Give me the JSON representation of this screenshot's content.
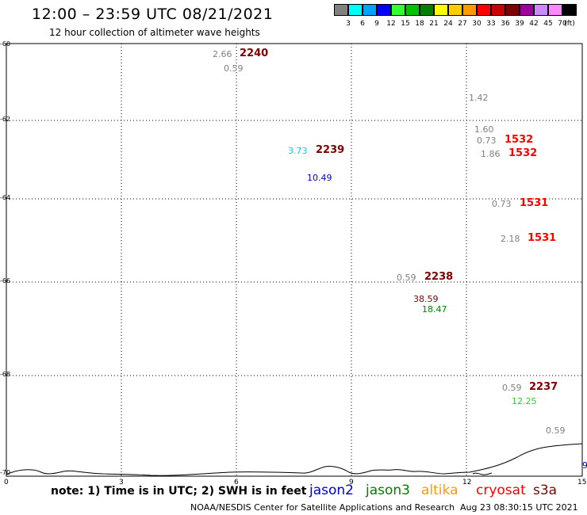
{
  "header": {
    "title": "12:00 – 23:59 UTC 08/21/2021",
    "subtitle": "12 hour collection of altimeter wave heights"
  },
  "legend": {
    "colors": [
      "#808080",
      "#00ffff",
      "#00a0ff",
      "#0000ff",
      "#33ff33",
      "#00c000",
      "#008000",
      "#ffff00",
      "#ffcc00",
      "#ff9900",
      "#ff0000",
      "#cc0000",
      "#800000",
      "#a000a0",
      "#cc88ff",
      "#ff88ff",
      "#000000"
    ],
    "ticks": [
      "3",
      "6",
      "9",
      "12",
      "15",
      "18",
      "21",
      "24",
      "27",
      "30",
      "33",
      "36",
      "39",
      "42",
      "45",
      "70",
      "(ft)"
    ]
  },
  "map": {
    "y_labels": [
      "-60",
      "-62",
      "-64",
      "-66",
      "-68",
      "-70"
    ],
    "x_labels": [
      "0",
      "3",
      "6",
      "9",
      "12",
      "15"
    ],
    "observations": [
      {
        "swh": "2.66",
        "color": "#808080"
      },
      {
        "time": "2240",
        "color": "#800000"
      },
      {
        "swh": "0.59",
        "color": "#808080"
      },
      {
        "swh": "1.42",
        "color": "#808080"
      },
      {
        "swh": "1.60",
        "color": "#808080"
      },
      {
        "swh": "0.73",
        "color": "#808080"
      },
      {
        "time": "1532",
        "color": "#ff0000"
      },
      {
        "swh": "1.86",
        "color": "#808080"
      },
      {
        "time": "1532",
        "color": "#ff0000"
      },
      {
        "swh": "3.73",
        "color": "#00ccff"
      },
      {
        "time": "2239",
        "color": "#800000"
      },
      {
        "swh": "10.49",
        "color": "#0000cc"
      },
      {
        "swh": "0.73",
        "color": "#808080"
      },
      {
        "time": "1531",
        "color": "#ff0000"
      },
      {
        "swh": "2.18",
        "color": "#808080"
      },
      {
        "time": "1531",
        "color": "#ff0000"
      },
      {
        "swh": "0.59",
        "color": "#808080"
      },
      {
        "time": "2238",
        "color": "#800000"
      },
      {
        "swh": "38.59",
        "color": "#800000"
      },
      {
        "swh": "18.47",
        "color": "#008000"
      },
      {
        "swh": "0.59",
        "color": "#808080"
      },
      {
        "time": "2237",
        "color": "#800000"
      },
      {
        "swh": "12.25",
        "color": "#33cc33"
      },
      {
        "swh": "0.59",
        "color": "#808080"
      },
      {
        "swh": "9",
        "color": "#0000cc"
      }
    ]
  },
  "footer": {
    "note": "note: 1) Time is in UTC; 2) SWH is in feet",
    "satellites": [
      {
        "name": "jason2",
        "color": "#0000cc"
      },
      {
        "name": "jason3",
        "color": "#008000"
      },
      {
        "name": "altika",
        "color": "#ff9900"
      },
      {
        "name": "cryosat",
        "color": "#ff0000"
      },
      {
        "name": "s3a",
        "color": "#800000"
      }
    ],
    "credit": "NOAA/NESDIS Center for Satellite Applications and Research",
    "timestamp": "Aug 23 08:30:15 UTC 2021"
  }
}
